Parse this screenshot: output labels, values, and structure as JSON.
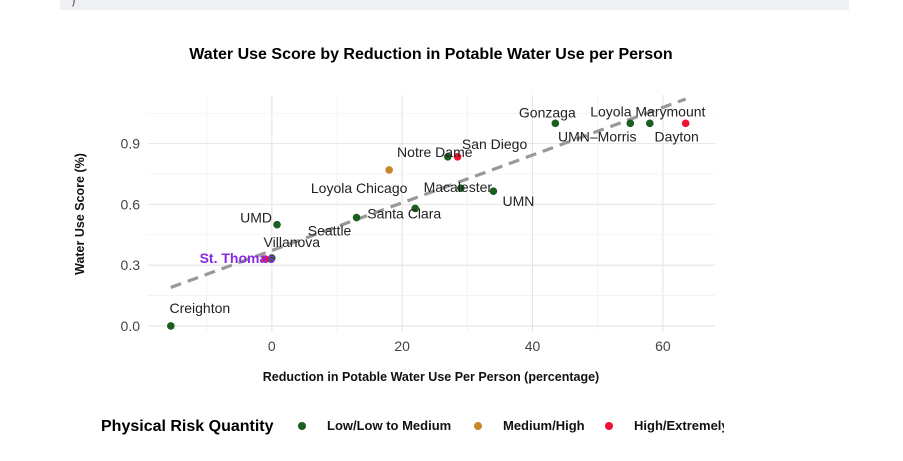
{
  "header": {
    "glyph": ")"
  },
  "chart_data": {
    "type": "scatter",
    "title": "Water Use Score by Reduction in Potable Water Use per Person",
    "xlabel": "Reduction in Potable Water Use Per Person (percentage)",
    "ylabel": "Water Use Score (%)",
    "xlim": [
      -19,
      68
    ],
    "ylim": [
      -0.03,
      1.14
    ],
    "xticks": [
      0,
      20,
      40,
      60
    ],
    "xtick_labels": [
      "0",
      "20",
      "40",
      "60"
    ],
    "yticks": [
      0.0,
      0.3,
      0.6,
      0.9
    ],
    "ytick_labels": [
      "0.0",
      "0.3",
      "0.6",
      "0.9"
    ],
    "grid": true,
    "legend": {
      "title": "Physical Risk Quantity",
      "placement": "bottom",
      "items": [
        {
          "label": "Low/Low to Medium",
          "color": "#1b5e20"
        },
        {
          "label": "Medium/High",
          "color": "#c8872a"
        },
        {
          "label": "High/Extremely",
          "color": "#ee1133"
        }
      ]
    },
    "trendline": {
      "style": "dashed",
      "color": "#999999",
      "x": [
        -15.5,
        63.5
      ],
      "y": [
        0.19,
        1.12
      ]
    },
    "points": [
      {
        "label": "Creighton",
        "x": -15.5,
        "y": 0.0,
        "risk": 0
      },
      {
        "label": "St. Thomas",
        "x": -1.0,
        "y": 0.33,
        "risk": 2,
        "highlight": true
      },
      {
        "label": "Villanova",
        "x": 0.0,
        "y": 0.335,
        "risk": 0
      },
      {
        "label": "UMD",
        "x": 0.8,
        "y": 0.5,
        "risk": 0
      },
      {
        "label": "Seattle",
        "x": 13.0,
        "y": 0.535,
        "risk": 0
      },
      {
        "label": "Santa Clara",
        "x": 22.0,
        "y": 0.58,
        "risk": 0
      },
      {
        "label": "Loyola Chicago",
        "x": 18.0,
        "y": 0.77,
        "risk": 1
      },
      {
        "label": "Notre Dame",
        "x": 27.0,
        "y": 0.835,
        "risk": 0
      },
      {
        "label": "San Diego",
        "x": 28.5,
        "y": 0.835,
        "risk": 2
      },
      {
        "label": "Macalester",
        "x": 29.0,
        "y": 0.68,
        "risk": 0
      },
      {
        "label": "UMN",
        "x": 34.0,
        "y": 0.665,
        "risk": 0
      },
      {
        "label": "Gonzaga",
        "x": 43.5,
        "y": 1.0,
        "risk": 0
      },
      {
        "label": "UMN–Morris",
        "x": 55.0,
        "y": 1.0,
        "risk": 0
      },
      {
        "label": "Loyola Marymount",
        "x": 58.0,
        "y": 1.0,
        "risk": 0
      },
      {
        "label": "Dayton",
        "x": 63.5,
        "y": 1.0,
        "risk": 2
      }
    ]
  }
}
